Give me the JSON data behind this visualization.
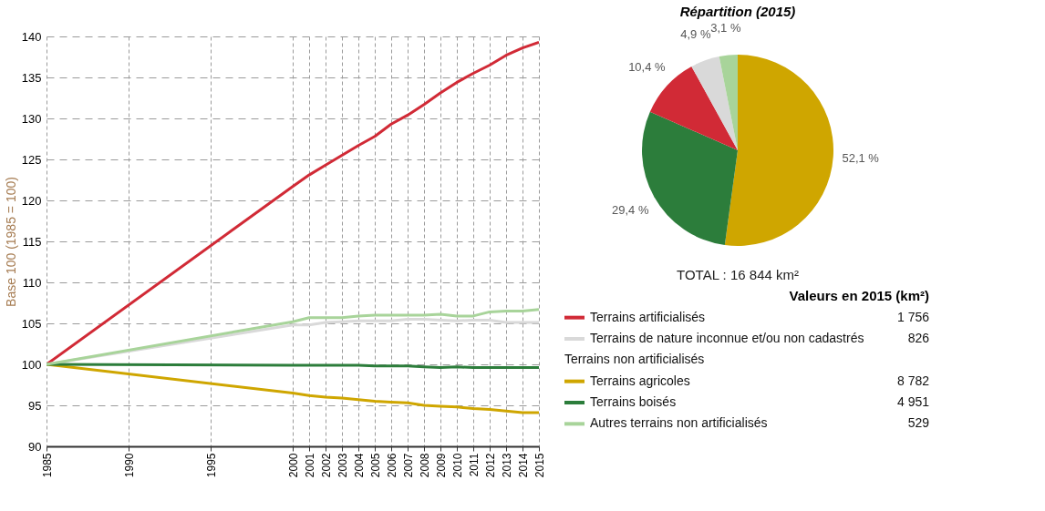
{
  "chart_data": [
    {
      "type": "line",
      "ylabel": "Base 100 (1985 = 100)",
      "xlim": [
        1985,
        2015
      ],
      "ylim": [
        90,
        140
      ],
      "xticks": [
        1985,
        1990,
        1995,
        2000,
        2001,
        2002,
        2003,
        2004,
        2005,
        2006,
        2007,
        2008,
        2009,
        2010,
        2011,
        2012,
        2013,
        2014,
        2015
      ],
      "yticks": [
        90,
        95,
        100,
        105,
        110,
        115,
        120,
        125,
        130,
        135,
        140
      ],
      "grid": true,
      "x": [
        1985,
        2000,
        2001,
        2002,
        2003,
        2004,
        2005,
        2006,
        2007,
        2008,
        2009,
        2010,
        2011,
        2012,
        2013,
        2014,
        2015
      ],
      "series": [
        {
          "color": "#d12a36",
          "values": [
            100,
            121.7,
            123.1,
            124.3,
            125.5,
            126.7,
            127.8,
            129.3,
            130.4,
            131.7,
            133.1,
            134.4,
            135.5,
            136.5,
            137.7,
            138.6,
            139.3
          ]
        },
        {
          "color": "#d9d9d9",
          "values": [
            100,
            104.8,
            104.8,
            105.1,
            105.2,
            105.3,
            105.3,
            105.3,
            105.5,
            105.5,
            105.4,
            105.3,
            105.4,
            105.4,
            105.1,
            105.1,
            105.1
          ]
        },
        {
          "color": "#cfa600",
          "values": [
            100,
            96.5,
            96.2,
            96.0,
            95.9,
            95.7,
            95.5,
            95.4,
            95.3,
            95.0,
            94.9,
            94.8,
            94.6,
            94.5,
            94.3,
            94.1,
            94.1
          ]
        },
        {
          "color": "#2c7d3b",
          "values": [
            100,
            99.9,
            99.9,
            99.9,
            99.9,
            99.9,
            99.8,
            99.8,
            99.8,
            99.7,
            99.6,
            99.7,
            99.6,
            99.6,
            99.6,
            99.6,
            99.6
          ]
        },
        {
          "color": "#a8d49a",
          "values": [
            100,
            105.2,
            105.7,
            105.7,
            105.7,
            105.9,
            106.0,
            106.0,
            106.0,
            106.0,
            106.1,
            105.9,
            105.9,
            106.4,
            106.5,
            106.5,
            106.7
          ]
        }
      ]
    },
    {
      "type": "pie",
      "title": "Répartition (2015)",
      "categories": [
        null,
        null,
        null,
        null,
        null
      ],
      "values": [
        52.1,
        29.4,
        10.4,
        4.9,
        3.1
      ],
      "colors": [
        "#cfa600",
        "#2c7d3b",
        "#d12a36",
        "#d9d9d9",
        "#a8d49a"
      ],
      "value_labels": [
        "52,1 %",
        "29,4 %",
        "10,4 %",
        "4,9 %",
        "3,1 %"
      ],
      "annotations": [
        "TOTAL : 16 844 km²"
      ]
    },
    {
      "type": "other",
      "title": "Valeurs en 2015 (km²)",
      "categories": [
        "Terrains artificialisés",
        "Terrains de nature inconnue et/ou non cadastrés",
        "Terrains agricoles",
        "Terrains boisés",
        "Autres terrains non artificialisés"
      ],
      "values": [
        1756,
        826,
        8782,
        4951,
        529
      ],
      "value_labels": [
        "1 756",
        "826",
        "8 782",
        "4 951",
        "529"
      ],
      "colors": [
        "#d12a36",
        "#d9d9d9",
        "#cfa600",
        "#2c7d3b",
        "#a8d49a"
      ],
      "annotations": [
        "Terrains non artificialisés"
      ]
    }
  ]
}
